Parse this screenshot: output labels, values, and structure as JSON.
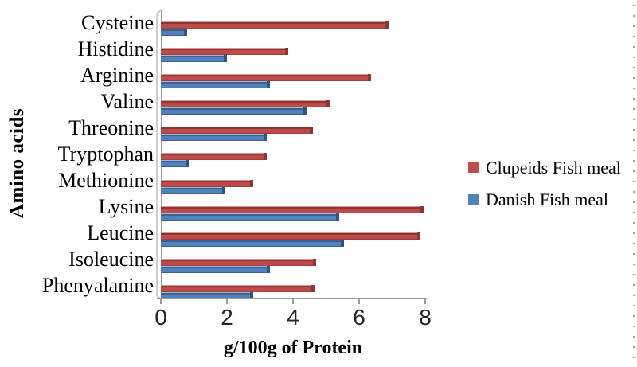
{
  "figure": {
    "background": "#ffffff",
    "axis_color": "#9a9a9a",
    "wall_back_color": "#bdbdbd",
    "tick_label_color": "#262626",
    "page_edge_dots_color": "#a0a0a0"
  },
  "chart_data": {
    "type": "bar",
    "orientation": "horizontal",
    "title": "",
    "xlabel": "g/100g of Protein",
    "ylabel": "Amino acids",
    "xlim": [
      0,
      8
    ],
    "xticks": [
      0,
      2,
      4,
      6,
      8
    ],
    "grid": false,
    "legend_position": "right",
    "categories": [
      "Cysteine",
      "Histidine",
      "Arginine",
      "Valine",
      "Threonine",
      "Tryptophan",
      "Methionine",
      "Lysine",
      "Leucine",
      "Isoleucine",
      "Phenyalanine"
    ],
    "series": [
      {
        "name": "Clupeids Fish meal",
        "color": "#BE4B48",
        "color_light": "#DC9795",
        "color_dark": "#8D3735",
        "color_bottom": "#9E403D",
        "cap_color": "#8D3735",
        "values": [
          6.9,
          3.85,
          6.35,
          5.1,
          4.6,
          3.2,
          2.8,
          7.95,
          7.85,
          4.7,
          4.65
        ]
      },
      {
        "name": "Danish Fish meal",
        "color": "#4F81BD",
        "color_light": "#9DBADC",
        "color_dark": "#3A6191",
        "color_bottom": "#3A6191",
        "cap_color": "#2F5382",
        "values": [
          0.8,
          2.0,
          3.3,
          4.4,
          3.2,
          0.85,
          1.95,
          5.4,
          5.55,
          3.3,
          2.8
        ]
      }
    ]
  }
}
